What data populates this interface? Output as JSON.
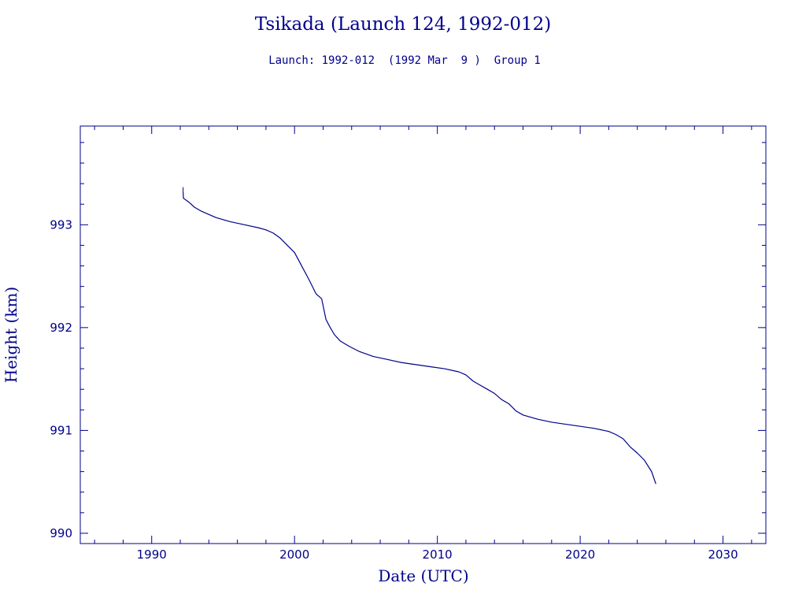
{
  "chart_data": {
    "type": "line",
    "title": "Tsikada (Launch 124, 1992-012)",
    "subtitle": "Launch: 1992-012  (1992 Mar  9 )  Group 1",
    "xlabel": "Date (UTC)",
    "ylabel": "Height (km)",
    "xlim": [
      1985,
      2033
    ],
    "ylim": [
      989.9,
      993.96
    ],
    "x_ticks": [
      1990,
      2000,
      2010,
      2020,
      2030
    ],
    "x_tick_labels": [
      "1990",
      "2000",
      "2010",
      "2020",
      "2030"
    ],
    "y_ticks": [
      990,
      991,
      992,
      993
    ],
    "y_tick_labels": [
      "990",
      "991",
      "992",
      "993"
    ],
    "grid": false,
    "line_color": "#00008b",
    "series": [
      {
        "x": [
          1992.2,
          1992.22,
          1992.3,
          1992.6,
          1993.0,
          1993.5,
          1994.5,
          1995.5,
          1996.5,
          1997.5,
          1998.0,
          1998.5,
          1999.0,
          1999.5,
          2000.0,
          2000.5,
          2001.0,
          2001.5,
          2001.9,
          2002.2,
          2002.5,
          2002.8,
          2003.2,
          2003.8,
          2004.5,
          2005.5,
          2006.5,
          2007.5,
          2008.5,
          2009.5,
          2010.5,
          2011.5,
          2012.0,
          2012.5,
          2013.0,
          2013.5,
          2014.0,
          2014.5,
          2015.0,
          2015.5,
          2016.0,
          2017.0,
          2018.0,
          2019.0,
          2020.0,
          2021.0,
          2022.0,
          2022.5,
          2023.0,
          2023.5,
          2024.0,
          2024.5,
          2025.0,
          2025.3
        ],
        "y": [
          993.32,
          993.26,
          993.25,
          993.22,
          993.17,
          993.13,
          993.07,
          993.03,
          993.0,
          992.97,
          992.95,
          992.92,
          992.87,
          992.8,
          992.73,
          992.6,
          992.47,
          992.33,
          992.28,
          992.08,
          992.0,
          991.93,
          991.87,
          991.82,
          991.77,
          991.72,
          991.69,
          991.66,
          991.64,
          991.62,
          991.6,
          991.57,
          991.54,
          991.48,
          991.44,
          991.4,
          991.36,
          991.3,
          991.26,
          991.19,
          991.15,
          991.11,
          991.08,
          991.06,
          991.04,
          991.02,
          990.99,
          990.96,
          990.92,
          990.84,
          990.78,
          990.71,
          990.6,
          990.48
        ]
      }
    ]
  }
}
